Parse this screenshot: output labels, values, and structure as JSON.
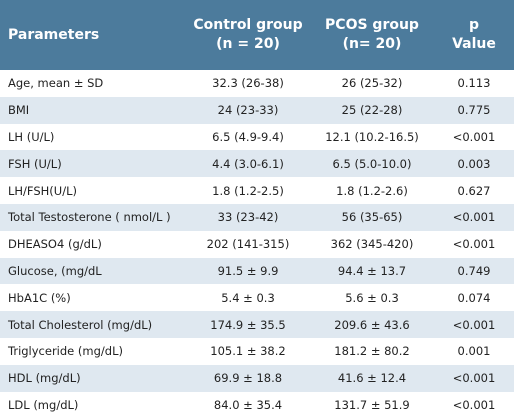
{
  "table": {
    "header": {
      "parameters": "Parameters",
      "control_line1": "Control group",
      "control_line2": "(n = 20)",
      "pcos_line1": "PCOS group",
      "pcos_line2": "(n= 20)",
      "p_line1": "p",
      "p_line2": "Value"
    },
    "rows": [
      {
        "param": "Age, mean ± SD",
        "control": "32.3 (26-38)",
        "pcos": "26 (25-32)",
        "p": "0.113"
      },
      {
        "param": "BMI",
        "control": "24 (23-33)",
        "pcos": "25 (22-28)",
        "p": "0.775"
      },
      {
        "param": "LH (U/L)",
        "control": "6.5 (4.9-9.4)",
        "pcos": "12.1 (10.2-16.5)",
        "p": "<0.001"
      },
      {
        "param": "FSH (U/L)",
        "control": "4.4 (3.0-6.1)",
        "pcos": "6.5 (5.0-10.0)",
        "p": "0.003"
      },
      {
        "param": "LH/FSH(U/L)",
        "control": "1.8 (1.2-2.5)",
        "pcos": "1.8 (1.2-2.6)",
        "p": "0.627"
      },
      {
        "param": "Total Testosterone ( nmol/L )",
        "control": "33 (23-42)",
        "pcos": "56 (35-65)",
        "p": "<0.001"
      },
      {
        "param": "DHEASO4 (g/dL)",
        "control": "202 (141-315)",
        "pcos": "362 (345-420)",
        "p": "<0.001"
      },
      {
        "param": "Glucose, (mg/dL",
        "control": "91.5 ± 9.9",
        "pcos": "94.4 ± 13.7",
        "p": "0.749"
      },
      {
        "param": "HbA1C (%)",
        "control": "5.4 ± 0.3",
        "pcos": "5.6 ± 0.3",
        "p": "0.074"
      },
      {
        "param": "Total Cholesterol (mg/dL)",
        "control": "174.9 ± 35.5",
        "pcos": "209.6 ± 43.6",
        "p": "<0.001"
      },
      {
        "param": "Triglyceride (mg/dL)",
        "control": "105.1 ± 38.2",
        "pcos": "181.2 ± 80.2",
        "p": "0.001"
      },
      {
        "param": "HDL (mg/dL)",
        "control": "69.9 ± 18.8",
        "pcos": "41.6 ± 12.4",
        "p": "<0.001"
      },
      {
        "param": "LDL (mg/dL)",
        "control": "84.0 ± 35.4",
        "pcos": "131.7 ± 51.9",
        "p": "<0.001"
      }
    ]
  }
}
